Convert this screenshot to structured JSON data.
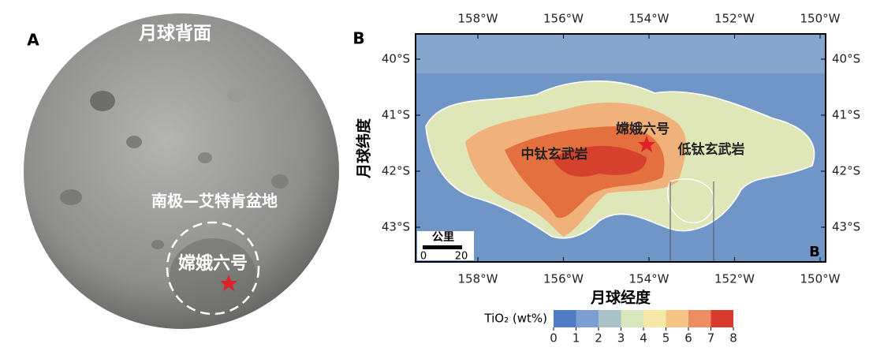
{
  "panel_a": {
    "label": "A",
    "title": "月球背面",
    "region": "南极—艾特肯盆地",
    "site": "嫦娥六号"
  },
  "panel_b": {
    "label": "B",
    "corner_label": "B",
    "lon_ticks": [
      "158°W",
      "156°W",
      "154°W",
      "152°W",
      "150°W"
    ],
    "lat_ticks": [
      "40°S",
      "41°S",
      "42°S",
      "43°S"
    ],
    "y_label": "月球纬度",
    "x_label": "月球经度",
    "site": "嫦娥六号",
    "mid_ti": "中钛玄武岩",
    "low_ti": "低钛玄武岩",
    "scale_bar": {
      "unit": "公里",
      "start": "0",
      "end": "20"
    }
  },
  "colorbar": {
    "label": "TiO₂ (wt%)",
    "ticks": [
      0,
      1,
      2,
      3,
      4,
      5,
      6,
      7,
      8
    ],
    "colors": [
      "#4f7cc4",
      "#7a9fd0",
      "#a8c2c8",
      "#d8e6bc",
      "#f6e8a6",
      "#f5c384",
      "#ec8e62",
      "#d93a2e"
    ]
  }
}
